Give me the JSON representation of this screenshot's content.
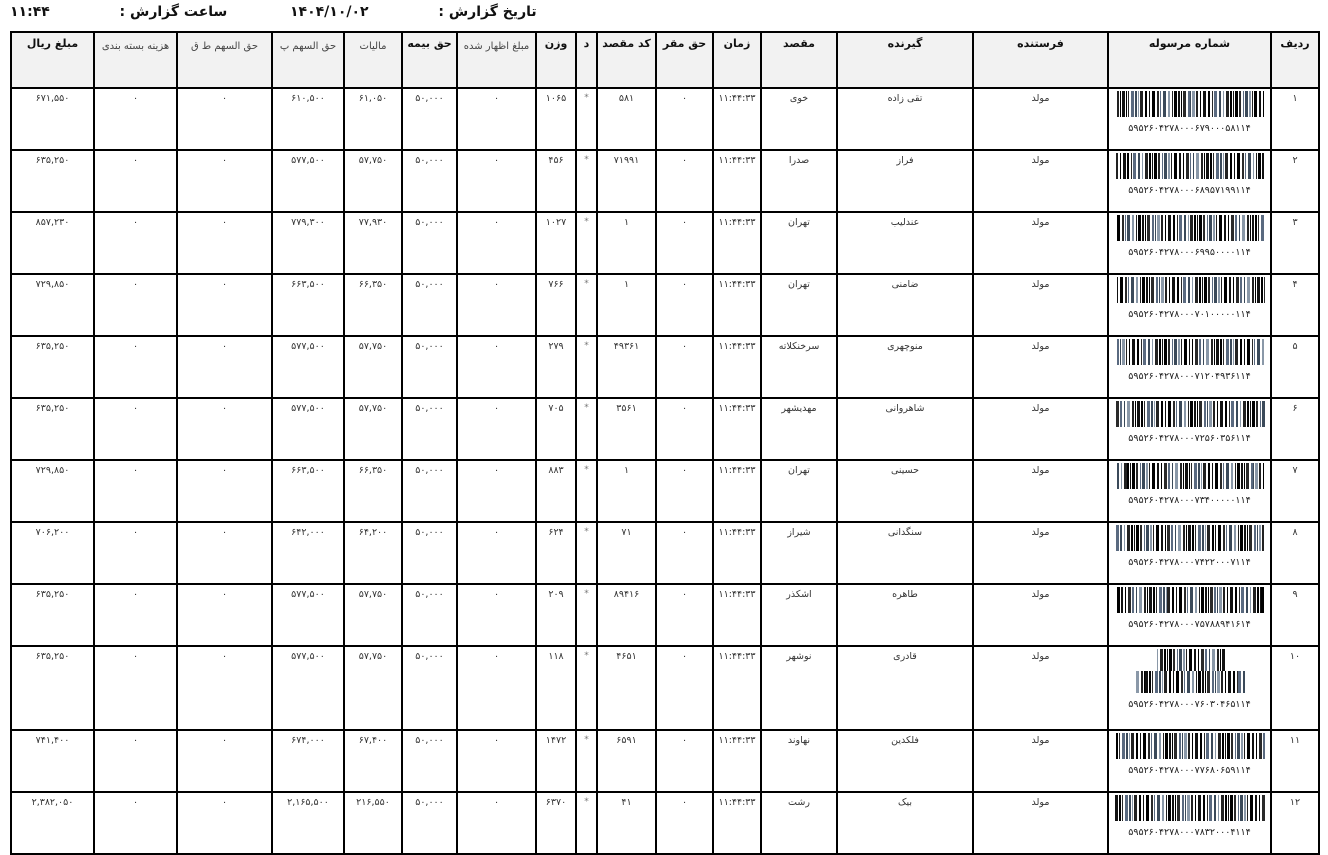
{
  "report": {
    "date_label": "تاریخ گزارش :",
    "date": "۱۴۰۴/۱۰/۰۲",
    "time_label": "ساعت گزارش :",
    "time": "۱۱:۴۴"
  },
  "columns": [
    "ردیف",
    "شماره مرسوله",
    "فرستنده",
    "گیرنده",
    "مقصد",
    "زمان",
    "حق مقر",
    "کد مقصد",
    "د",
    "وزن",
    "مبلغ اظهار شده",
    "حق بیمه",
    "مالیات",
    "حق السهم پ",
    "حق السهم ط ق",
    "هزینه بسته بندی",
    "مبلغ ریال"
  ],
  "rows": [
    {
      "no": "۱",
      "tracking": "۵۹۵۲۶۰۴۲۷۸۰۰۰۶۷۹۰۰۰۵۸۱۱۴",
      "sender": "مولد",
      "receiver": "تقی زاده",
      "dest": "خوی",
      "time": "۱۱:۴۴:۳۳",
      "origin_fee": "۰",
      "dest_code": "۵۸۱",
      "d": "*",
      "weight": "۱۰۶۵",
      "declared": "۰",
      "insurance": "۵۰,۰۰۰",
      "tax": "۶۱,۰۵۰",
      "share_p": "۶۱۰,۵۰۰",
      "share_tq": "۰",
      "packing": "۰",
      "total": "۶۷۱,۵۵۰"
    },
    {
      "no": "۲",
      "tracking": "۵۹۵۲۶۰۴۲۷۸۰۰۰۶۸۹۵۷۱۹۹۱۱۴",
      "sender": "مولد",
      "receiver": "فراز",
      "dest": "صدرا",
      "time": "۱۱:۴۴:۳۳",
      "origin_fee": "۰",
      "dest_code": "۷۱۹۹۱",
      "d": "*",
      "weight": "۴۵۶",
      "declared": "۰",
      "insurance": "۵۰,۰۰۰",
      "tax": "۵۷,۷۵۰",
      "share_p": "۵۷۷,۵۰۰",
      "share_tq": "۰",
      "packing": "۰",
      "total": "۶۳۵,۲۵۰"
    },
    {
      "no": "۳",
      "tracking": "۵۹۵۲۶۰۴۲۷۸۰۰۰۶۹۹۵۰۰۰۰۱۱۴",
      "sender": "مولد",
      "receiver": "عندلیب",
      "dest": "تهران",
      "time": "۱۱:۴۴:۳۳",
      "origin_fee": "۰",
      "dest_code": "۱",
      "d": "*",
      "weight": "۱۰۲۷",
      "declared": "۰",
      "insurance": "۵۰,۰۰۰",
      "tax": "۷۷,۹۳۰",
      "share_p": "۷۷۹,۳۰۰",
      "share_tq": "۰",
      "packing": "۰",
      "total": "۸۵۷,۲۳۰"
    },
    {
      "no": "۴",
      "tracking": "۵۹۵۲۶۰۴۲۷۸۰۰۰۷۰۱۰۰۰۰۰۱۱۴",
      "sender": "مولد",
      "receiver": "ضامنی",
      "dest": "تهران",
      "time": "۱۱:۴۴:۳۳",
      "origin_fee": "۰",
      "dest_code": "۱",
      "d": "*",
      "weight": "۷۶۶",
      "declared": "۰",
      "insurance": "۵۰,۰۰۰",
      "tax": "۶۶,۳۵۰",
      "share_p": "۶۶۳,۵۰۰",
      "share_tq": "۰",
      "packing": "۰",
      "total": "۷۲۹,۸۵۰"
    },
    {
      "no": "۵",
      "tracking": "۵۹۵۲۶۰۴۲۷۸۰۰۰۷۱۲۰۴۹۳۶۱۱۴",
      "sender": "مولد",
      "receiver": "منوچهری",
      "dest": "سرخنکلاته",
      "time": "۱۱:۴۴:۳۳",
      "origin_fee": "۰",
      "dest_code": "۴۹۳۶۱",
      "d": "*",
      "weight": "۲۷۹",
      "declared": "۰",
      "insurance": "۵۰,۰۰۰",
      "tax": "۵۷,۷۵۰",
      "share_p": "۵۷۷,۵۰۰",
      "share_tq": "۰",
      "packing": "۰",
      "total": "۶۳۵,۲۵۰"
    },
    {
      "no": "۶",
      "tracking": "۵۹۵۲۶۰۴۲۷۸۰۰۰۷۲۵۶۰۳۵۶۱۱۴",
      "sender": "مولد",
      "receiver": "شاهروانی",
      "dest": "مهدیشهر",
      "time": "۱۱:۴۴:۳۳",
      "origin_fee": "۰",
      "dest_code": "۳۵۶۱",
      "d": "*",
      "weight": "۷۰۵",
      "declared": "۰",
      "insurance": "۵۰,۰۰۰",
      "tax": "۵۷,۷۵۰",
      "share_p": "۵۷۷,۵۰۰",
      "share_tq": "۰",
      "packing": "۰",
      "total": "۶۳۵,۲۵۰"
    },
    {
      "no": "۷",
      "tracking": "۵۹۵۲۶۰۴۲۷۸۰۰۰۷۳۴۰۰۰۰۰۱۱۴",
      "sender": "مولد",
      "receiver": "حسینی",
      "dest": "تهران",
      "time": "۱۱:۴۴:۳۳",
      "origin_fee": "۰",
      "dest_code": "۱",
      "d": "*",
      "weight": "۸۸۳",
      "declared": "۰",
      "insurance": "۵۰,۰۰۰",
      "tax": "۶۶,۳۵۰",
      "share_p": "۶۶۳,۵۰۰",
      "share_tq": "۰",
      "packing": "۰",
      "total": "۷۲۹,۸۵۰"
    },
    {
      "no": "۸",
      "tracking": "۵۹۵۲۶۰۴۲۷۸۰۰۰۷۴۲۲۰۰۰۷۱۱۴",
      "sender": "مولد",
      "receiver": "سنگدانی",
      "dest": "شیراز",
      "time": "۱۱:۴۴:۳۳",
      "origin_fee": "۰",
      "dest_code": "۷۱",
      "d": "*",
      "weight": "۶۲۴",
      "declared": "۰",
      "insurance": "۵۰,۰۰۰",
      "tax": "۶۴,۲۰۰",
      "share_p": "۶۴۲,۰۰۰",
      "share_tq": "۰",
      "packing": "۰",
      "total": "۷۰۶,۲۰۰"
    },
    {
      "no": "۹",
      "tracking": "۵۹۵۲۶۰۴۲۷۸۰۰۰۷۵۷۸۸۹۴۱۶۱۴",
      "sender": "مولد",
      "receiver": "طاهره",
      "dest": "اشکذر",
      "time": "۱۱:۴۴:۳۳",
      "origin_fee": "۰",
      "dest_code": "۸۹۴۱۶",
      "d": "*",
      "weight": "۲۰۹",
      "declared": "۰",
      "insurance": "۵۰,۰۰۰",
      "tax": "۵۷,۷۵۰",
      "share_p": "۵۷۷,۵۰۰",
      "share_tq": "۰",
      "packing": "۰",
      "total": "۶۳۵,۲۵۰"
    },
    {
      "no": "۱۰",
      "tracking": "۵۹۵۲۶۰۴۲۷۸۰۰۰۷۶۰۳۰۴۶۵۱۱۴",
      "sender": "مولد",
      "receiver": "قادری",
      "dest": "نوشهر",
      "time": "۱۱:۴۴:۳۳",
      "origin_fee": "۰",
      "dest_code": "۴۶۵۱",
      "d": "*",
      "weight": "۱۱۸",
      "declared": "۰",
      "insurance": "۵۰,۰۰۰",
      "tax": "۵۷,۷۵۰",
      "share_p": "۵۷۷,۵۰۰",
      "share_tq": "۰",
      "packing": "۰",
      "total": "۶۳۵,۲۵۰"
    },
    {
      "no": "۱۱",
      "tracking": "۵۹۵۲۶۰۴۲۷۸۰۰۰۷۷۶۸۰۶۵۹۱۱۴",
      "sender": "مولد",
      "receiver": "فلکدین",
      "dest": "نهاوند",
      "time": "۱۱:۴۴:۳۳",
      "origin_fee": "۰",
      "dest_code": "۶۵۹۱",
      "d": "*",
      "weight": "۱۴۷۲",
      "declared": "۰",
      "insurance": "۵۰,۰۰۰",
      "tax": "۶۷,۴۰۰",
      "share_p": "۶۷۴,۰۰۰",
      "share_tq": "۰",
      "packing": "۰",
      "total": "۷۴۱,۴۰۰"
    },
    {
      "no": "۱۲",
      "tracking": "۵۹۵۲۶۰۴۲۷۸۰۰۰۷۸۳۲۰۰۰۴۱۱۴",
      "sender": "مولد",
      "receiver": "بیک",
      "dest": "رشت",
      "time": "۱۱:۴۴:۳۳",
      "origin_fee": "۰",
      "dest_code": "۴۱",
      "d": "*",
      "weight": "۶۳۷۰",
      "declared": "۰",
      "insurance": "۵۰,۰۰۰",
      "tax": "۲۱۶,۵۵۰",
      "share_p": "۲,۱۶۵,۵۰۰",
      "share_tq": "۰",
      "packing": "۰",
      "total": "۲,۳۸۲,۰۵۰"
    }
  ]
}
